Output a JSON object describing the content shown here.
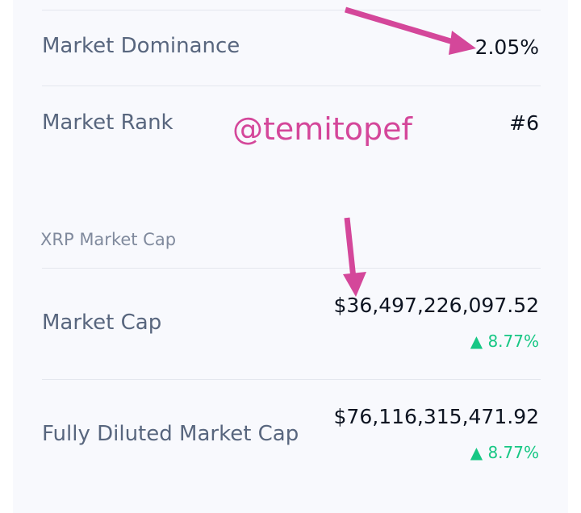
{
  "rows_top": [
    {
      "label": "Market Dominance",
      "value": "2.05%"
    },
    {
      "label": "Market Rank",
      "value": "#6"
    }
  ],
  "watermark": "@temitopef",
  "section": {
    "title": "XRP Market Cap",
    "rows": [
      {
        "label": "Market Cap",
        "value": "$36,497,226,097.52",
        "change": "8.77%"
      },
      {
        "label": "Fully Diluted Market Cap",
        "value": "$76,116,315,471.92",
        "change": "8.77%"
      }
    ]
  }
}
